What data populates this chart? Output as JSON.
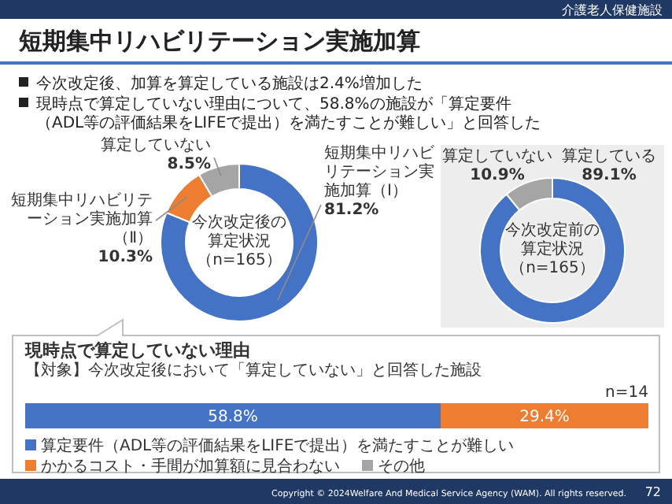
{
  "chart_data": [
    {
      "type": "donut",
      "title": "短期集中リハビリテーション実施加算",
      "annotations": [
        "介護老人保健施設",
        "今次改定後、加算を算定している施設は2.4%増加した",
        "現時点で算定していない理由について、58.8%の施設が「算定要件（ADL等の評価結果をLIFEで提出）を満たすことが難しい」と回答した",
        "今次改定後の算定状況（n=165）",
        "Copyright © 2024Welfare And Medical Service Agency (WAM). All rights reserved.",
        "72"
      ],
      "categories": [
        "短期集中リハビリテーション実施加算（Ⅰ）",
        "短期集中リハビリテーション実施加算（Ⅱ）",
        "算定していない"
      ],
      "values": [
        81.2,
        10.3,
        8.5
      ],
      "colors": [
        "#4472c4",
        "#ed7d31",
        "#a5a5a5"
      ],
      "value_labels": [
        "81.2%",
        "10.3%",
        "8.5%"
      ]
    },
    {
      "type": "donut",
      "annotations": [
        "今次改定前の算定状況（n=165）"
      ],
      "categories": [
        "算定している",
        "算定していない"
      ],
      "values": [
        89.1,
        10.9
      ],
      "colors": [
        "#4472c4",
        "#a5a5a5"
      ],
      "value_labels": [
        "89.1%",
        "10.9%"
      ]
    },
    {
      "type": "bar",
      "orientation": "horizontal",
      "stacked": true,
      "title": "現時点で算定していない理由",
      "subtitle": "【対象】今次改定後において「算定していない」と回答した施設",
      "annotations": [
        "n=14"
      ],
      "categories": [
        null
      ],
      "xlim": [
        0,
        88.2
      ],
      "legend": "bottom",
      "series": [
        {
          "name": "算定要件（ADL等の評価結果をLIFEで提出）を満たすことが難しい",
          "color": "#4472c4",
          "values": [
            58.8
          ],
          "value_labels": [
            "58.8%"
          ]
        },
        {
          "name": "かかるコスト・手間が加算額に見合わない",
          "color": "#ed7d31",
          "values": [
            29.4
          ],
          "value_labels": [
            "29.4%"
          ]
        },
        {
          "name": "その他",
          "color": "#a5a5a5",
          "values": [
            0
          ],
          "value_labels": [
            null
          ]
        }
      ]
    }
  ]
}
